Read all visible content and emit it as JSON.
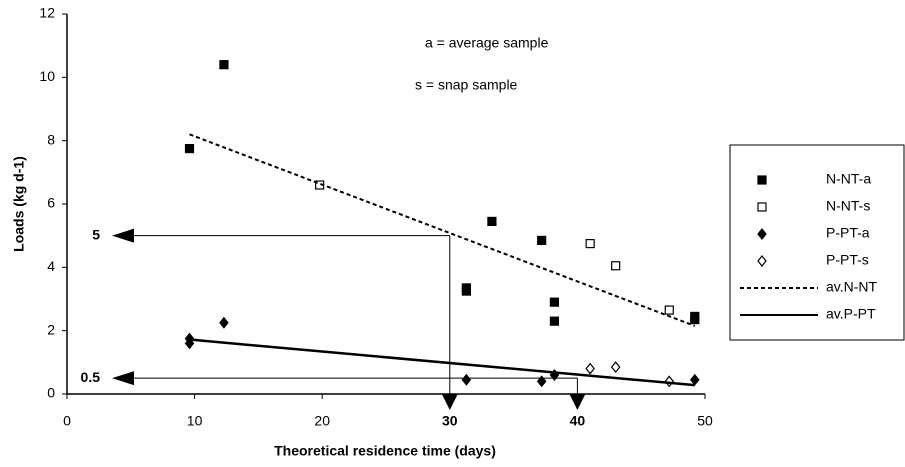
{
  "chart_data": {
    "type": "scatter",
    "xlabel": "Theoretical residence time (days)",
    "ylabel": "Loads (kg d-1)",
    "notes": [
      "a = average sample",
      "s = snap sample"
    ],
    "xlim": [
      0,
      50
    ],
    "xticks": [
      0,
      10,
      20,
      30,
      40,
      50
    ],
    "ylim": [
      0,
      12
    ],
    "yticks": [
      0,
      2,
      4,
      6,
      8,
      10,
      12
    ],
    "series": [
      {
        "name": "N-NT-a",
        "marker": "square",
        "filled": true,
        "color": "#000000",
        "x": [
          9.6,
          12.3,
          31.3,
          31.3,
          33.3,
          37.2,
          38.2,
          38.2,
          49.2,
          49.2
        ],
        "values": [
          7.75,
          10.4,
          3.35,
          3.25,
          5.45,
          4.85,
          2.9,
          2.3,
          2.45,
          2.35
        ]
      },
      {
        "name": "N-NT-s",
        "marker": "square",
        "filled": false,
        "color": "#000000",
        "x": [
          19.8,
          41,
          43,
          47.2
        ],
        "values": [
          6.6,
          4.75,
          4.05,
          2.65
        ]
      },
      {
        "name": "P-PT-a",
        "marker": "diamond",
        "filled": true,
        "color": "#000000",
        "x": [
          9.6,
          9.6,
          12.3,
          31.3,
          37.2,
          38.2,
          49.2
        ],
        "values": [
          1.75,
          1.6,
          2.25,
          0.45,
          0.4,
          0.6,
          0.45
        ]
      },
      {
        "name": "P-PT-s",
        "marker": "diamond",
        "filled": false,
        "color": "#000000",
        "x": [
          41,
          43,
          47.2
        ],
        "values": [
          0.8,
          0.85,
          0.4
        ]
      },
      {
        "name": "av.N-NT",
        "marker": "line",
        "dash": "dashed",
        "color": "#000000",
        "x": [
          9.6,
          49.2
        ],
        "values": [
          8.2,
          2.15
        ]
      },
      {
        "name": "av.P-PT",
        "marker": "line",
        "dash": "solid",
        "color": "#000000",
        "x": [
          9.6,
          49.2
        ],
        "values": [
          1.72,
          0.28
        ]
      }
    ],
    "annotations": [
      {
        "label": "5",
        "x": 30,
        "y": 5
      },
      {
        "label": "0.5",
        "x": 40,
        "y": 0.5
      }
    ]
  }
}
